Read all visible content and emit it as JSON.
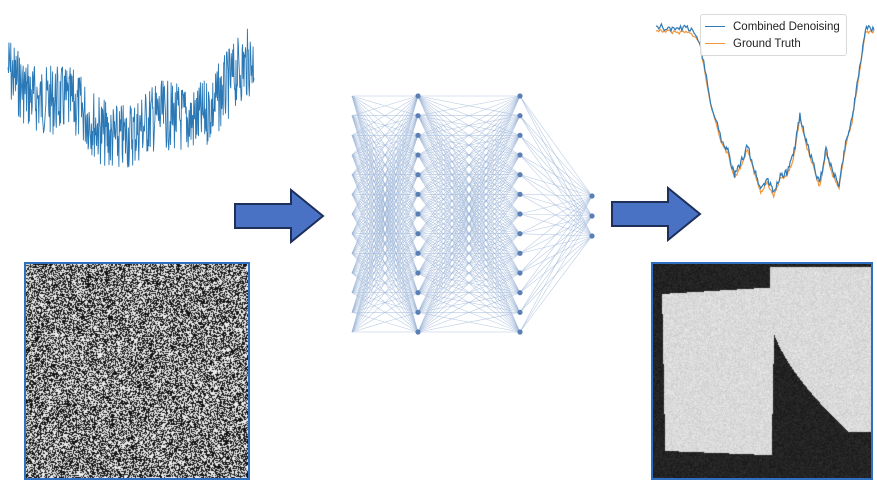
{
  "chart_data": {
    "type": "line",
    "series": [
      {
        "name": "Combined Denoising",
        "color": "#2f79b6"
      },
      {
        "name": "Ground Truth",
        "color": "#f0963c"
      }
    ],
    "x": [
      0,
      5,
      10,
      15,
      20,
      25,
      30,
      33,
      36,
      39,
      42,
      45,
      48,
      51,
      54,
      57,
      60,
      63,
      66,
      69,
      72,
      75,
      78,
      81,
      84,
      87,
      90,
      93,
      96,
      100
    ],
    "y": [
      1.0,
      0.99,
      0.98,
      0.99,
      0.92,
      0.55,
      0.32,
      0.25,
      0.1,
      0.18,
      0.28,
      0.14,
      0.02,
      0.08,
      0.0,
      0.1,
      0.12,
      0.22,
      0.47,
      0.3,
      0.18,
      0.05,
      0.26,
      0.12,
      0.05,
      0.3,
      0.45,
      0.71,
      0.98,
      0.99
    ],
    "legend_position": "top-right"
  },
  "flow": {
    "arrow_color": "#4a72c4",
    "arrow_border": "#1e2f5a"
  },
  "network": {
    "layers": [
      13,
      13,
      13,
      3
    ],
    "node_color": "#5a7fb5",
    "edge_color": "#9db6d8"
  },
  "images": {
    "frame_color": "#2f6fc0"
  }
}
